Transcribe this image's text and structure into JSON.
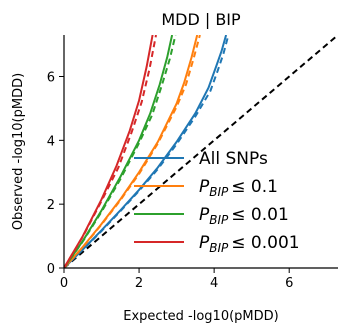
{
  "chart_data": {
    "type": "line",
    "title": "MDD | BIP",
    "xlabel": "Expected -log10(pMDD)",
    "ylabel": "Observed -log10(pMDD)",
    "xlim": [
      0,
      7.3
    ],
    "ylim": [
      0,
      7.3
    ],
    "xticks": [
      0,
      2,
      4,
      6
    ],
    "yticks": [
      0,
      2,
      4,
      6
    ],
    "grid": false,
    "legend_position": "bottom-right",
    "null_line": {
      "style": "dashed",
      "color": "#000000"
    },
    "series": [
      {
        "name": "All SNPs",
        "color": "#1f77b4",
        "solid": {
          "x": [
            0,
            0.5,
            1,
            1.5,
            2,
            2.5,
            3,
            3.5,
            3.85,
            4.05,
            4.2,
            4.32
          ],
          "y": [
            0,
            0.58,
            1.18,
            1.8,
            2.45,
            3.15,
            3.95,
            4.85,
            5.65,
            6.3,
            6.8,
            7.3
          ]
        },
        "dashed": {
          "x": [
            0,
            0.5,
            1,
            1.5,
            2,
            2.5,
            3,
            3.5,
            3.9,
            4.1,
            4.25,
            4.38
          ],
          "y": [
            0,
            0.57,
            1.16,
            1.78,
            2.42,
            3.1,
            3.88,
            4.75,
            5.55,
            6.2,
            6.72,
            7.3
          ]
        }
      },
      {
        "name": "P_BIP ≤ 0.1",
        "label_main": "P",
        "label_sub": "BIP",
        "label_rest": "≤ 0.1",
        "color": "#ff7f0e",
        "solid": {
          "x": [
            0,
            0.5,
            1,
            1.5,
            2,
            2.5,
            3,
            3.2,
            3.4,
            3.55
          ],
          "y": [
            0,
            0.66,
            1.38,
            2.15,
            3.0,
            3.95,
            5.15,
            5.8,
            6.6,
            7.3
          ]
        },
        "dashed": {
          "x": [
            0,
            0.5,
            1,
            1.5,
            2,
            2.5,
            3,
            3.25,
            3.45,
            3.62
          ],
          "y": [
            0,
            0.65,
            1.36,
            2.12,
            2.95,
            3.9,
            5.05,
            5.75,
            6.55,
            7.3
          ]
        }
      },
      {
        "name": "P_BIP ≤ 0.01",
        "label_main": "P",
        "label_sub": "BIP",
        "label_rest": "≤ 0.01",
        "color": "#2ca02c",
        "solid": {
          "x": [
            0,
            0.5,
            1,
            1.5,
            2,
            2.3,
            2.55,
            2.75,
            2.88
          ],
          "y": [
            0,
            0.85,
            1.8,
            2.85,
            4.0,
            4.85,
            5.75,
            6.6,
            7.3
          ]
        },
        "dashed": {
          "x": [
            0,
            0.5,
            1,
            1.5,
            2,
            2.35,
            2.6,
            2.82,
            2.97
          ],
          "y": [
            0,
            0.83,
            1.76,
            2.78,
            3.92,
            4.8,
            5.7,
            6.55,
            7.3
          ]
        }
      },
      {
        "name": "P_BIP ≤ 0.001",
        "label_main": "P",
        "label_sub": "BIP",
        "label_rest": "≤ 0.001",
        "color": "#d62728",
        "solid": {
          "x": [
            0,
            0.5,
            1,
            1.4,
            1.75,
            2.0,
            2.2,
            2.36
          ],
          "y": [
            0,
            1.0,
            2.15,
            3.2,
            4.3,
            5.25,
            6.3,
            7.3
          ]
        },
        "dashed": {
          "x": [
            0,
            0.5,
            1,
            1.45,
            1.8,
            2.07,
            2.28,
            2.45
          ],
          "y": [
            0,
            0.98,
            2.1,
            3.15,
            4.25,
            5.2,
            6.25,
            7.3
          ]
        }
      }
    ]
  }
}
